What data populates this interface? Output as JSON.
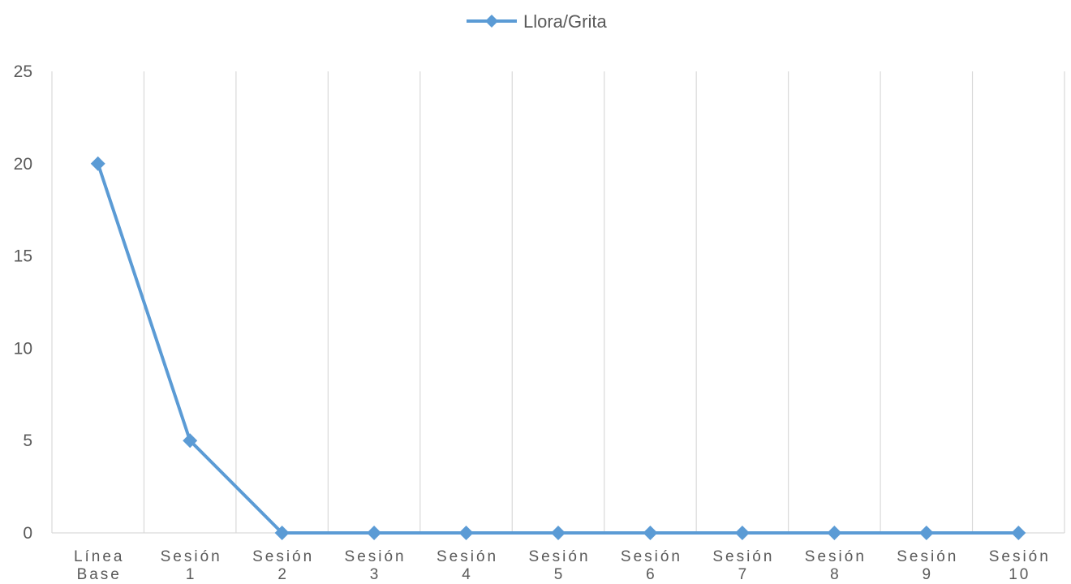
{
  "chart_data": {
    "type": "line",
    "title": "",
    "xlabel": "",
    "ylabel": "",
    "ylim": [
      0,
      25
    ],
    "yticks": [
      0,
      5,
      10,
      15,
      20,
      25
    ],
    "grid": "vertical",
    "legend": "top-center",
    "categories": [
      [
        "Línea",
        "Base"
      ],
      [
        "Sesión",
        "1"
      ],
      [
        "Sesión",
        "2"
      ],
      [
        "Sesión",
        "3"
      ],
      [
        "Sesión",
        "4"
      ],
      [
        "Sesión",
        "5"
      ],
      [
        "Sesión",
        "6"
      ],
      [
        "Sesión",
        "7"
      ],
      [
        "Sesión",
        "8"
      ],
      [
        "Sesión",
        "9"
      ],
      [
        "Sesión",
        "10"
      ]
    ],
    "series": [
      {
        "name": "Llora/Grita",
        "values": [
          20,
          5,
          0,
          0,
          0,
          0,
          0,
          0,
          0,
          0,
          0
        ],
        "color": "#5B9BD5"
      }
    ]
  }
}
